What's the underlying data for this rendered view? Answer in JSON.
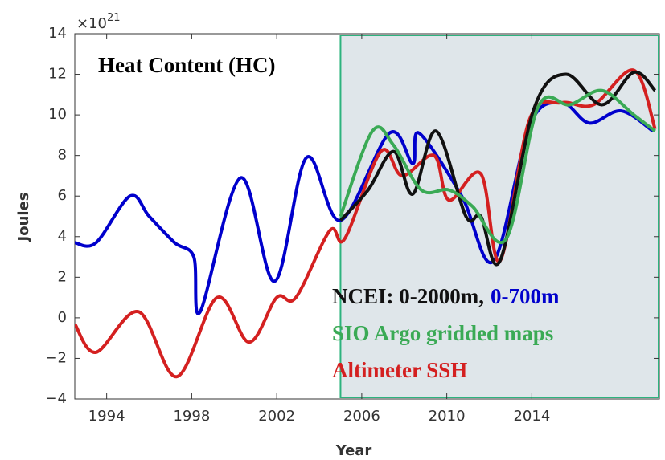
{
  "chart_data": {
    "type": "line",
    "title": "Heat Content (HC)",
    "xlabel": "Year",
    "ylabel": "Joules",
    "y_multiplier": {
      "base": "×10",
      "power": "21"
    },
    "xlim": [
      1992.5,
      2020
    ],
    "xticks": [
      1994,
      1998,
      2002,
      2006,
      2010,
      2014
    ],
    "ylim": [
      -4,
      14
    ],
    "yticks": [
      {
        "value": -4,
        "label": "−4"
      },
      {
        "value": -2,
        "label": "−2"
      },
      0,
      2,
      4,
      6,
      8,
      10,
      12,
      14
    ],
    "grid": false,
    "highlight": {
      "xlim": [
        2005,
        2020
      ],
      "color": "#dfe6ea",
      "edge_color": "#2db37e"
    },
    "series": [
      {
        "name": "NCEI: 0-2000m,",
        "color": "#111111",
        "x": [
          2005.0,
          2006.3,
          2007.5,
          2008.4,
          2009.5,
          2010.9,
          2011.6,
          2012.5,
          2014.1,
          2015.6,
          2017.3,
          2018.8,
          2019.8
        ],
        "values": [
          4.8,
          6.3,
          8.2,
          6.1,
          9.2,
          5.0,
          5.0,
          2.8,
          10.3,
          12.0,
          10.5,
          12.1,
          11.2
        ]
      },
      {
        "name": "0-700m",
        "color": "#0000cc",
        "x": [
          1992.5,
          1993.5,
          1995.1,
          1996.0,
          1997.2,
          1998.1,
          1998.4,
          2000.3,
          2001.9,
          2003.4,
          2005.0,
          2007.3,
          2008.4,
          2008.7,
          2010.7,
          2012.2,
          2013.9,
          2015.4,
          2016.7,
          2018.2,
          2019.7
        ],
        "values": [
          3.7,
          3.7,
          6.0,
          5.0,
          3.7,
          3.0,
          0.3,
          6.9,
          1.8,
          7.9,
          4.8,
          9.1,
          7.6,
          9.1,
          6.0,
          2.8,
          9.5,
          10.6,
          9.6,
          10.2,
          9.2
        ]
      },
      {
        "name": "SIO Argo gridded maps",
        "color": "#3aaa55",
        "x": [
          2005.0,
          2006.5,
          2007.5,
          2008.8,
          2010.1,
          2011.2,
          2012.8,
          2014.3,
          2015.8,
          2017.3,
          2018.8,
          2019.8
        ],
        "values": [
          5.0,
          9.2,
          8.5,
          6.3,
          6.3,
          5.5,
          3.9,
          10.4,
          10.5,
          11.2,
          10.0,
          9.2
        ]
      },
      {
        "name": "Altimeter SSH",
        "color": "#d42020",
        "x": [
          1992.5,
          1993.5,
          1995.5,
          1997.3,
          1999.2,
          2000.7,
          2002.0,
          2002.9,
          2004.5,
          2005.2,
          2006.9,
          2007.9,
          2009.4,
          2010.1,
          2011.6,
          2012.5,
          2013.9,
          2015.4,
          2016.9,
          2018.8,
          2019.8
        ],
        "values": [
          -0.3,
          -1.7,
          0.3,
          -2.9,
          1.0,
          -1.2,
          1.0,
          1.0,
          4.3,
          3.9,
          8.2,
          7.0,
          8.0,
          5.8,
          7.1,
          2.8,
          9.8,
          10.6,
          10.5,
          12.2,
          9.3
        ]
      }
    ]
  }
}
